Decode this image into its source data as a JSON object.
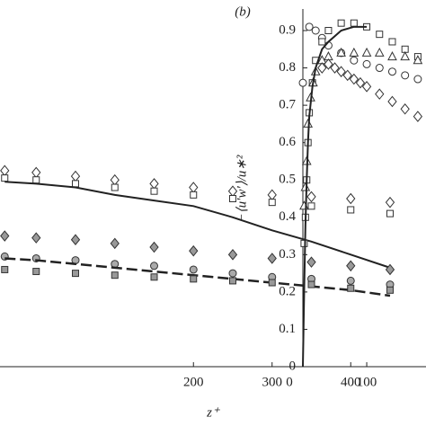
{
  "chart_data": [
    {
      "type": "scatter",
      "xlabel": "z⁺",
      "xlim": [
        -46,
        450
      ],
      "ylim": [
        0,
        0.9
      ],
      "xticks": [
        200,
        300,
        400
      ],
      "x": [
        -40,
        0,
        50,
        100,
        150,
        200,
        250,
        300,
        350,
        400,
        450
      ],
      "series": [
        {
          "marker": "diamond",
          "color": "#333333",
          "fill": "#ffffff",
          "values": [
            0.525,
            0.52,
            0.51,
            0.5,
            0.49,
            0.48,
            0.47,
            0.46,
            0.455,
            0.45,
            0.44
          ]
        },
        {
          "marker": "square",
          "color": "#333333",
          "fill": "#ffffff",
          "values": [
            0.505,
            0.5,
            0.49,
            0.48,
            0.47,
            0.46,
            0.45,
            0.44,
            0.43,
            0.42,
            0.41
          ]
        },
        {
          "marker": "line",
          "color": "#222222",
          "values": [
            0.495,
            0.49,
            0.48,
            0.46,
            0.445,
            0.43,
            0.4,
            0.365,
            0.335,
            0.3,
            0.265
          ]
        },
        {
          "marker": "diamond",
          "color": "#333333",
          "fill": "#999999",
          "values": [
            0.35,
            0.345,
            0.34,
            0.33,
            0.32,
            0.31,
            0.3,
            0.29,
            0.28,
            0.27,
            0.26
          ]
        },
        {
          "marker": "circle",
          "color": "#333333",
          "fill": "#aaaaaa",
          "values": [
            0.295,
            0.29,
            0.285,
            0.275,
            0.27,
            0.26,
            0.25,
            0.24,
            0.235,
            0.23,
            0.22
          ]
        },
        {
          "marker": "dashed",
          "color": "#222222",
          "values": [
            0.29,
            0.285,
            0.275,
            0.265,
            0.255,
            0.245,
            0.235,
            0.225,
            0.215,
            0.205,
            0.19
          ]
        },
        {
          "marker": "square",
          "color": "#333333",
          "fill": "#999999",
          "values": [
            0.26,
            0.255,
            0.25,
            0.245,
            0.24,
            0.235,
            0.23,
            0.225,
            0.22,
            0.21,
            0.205
          ]
        }
      ]
    },
    {
      "type": "scatter",
      "panel_label": "(b)",
      "ylabel": "−⟨u′w′⟩/u∗²",
      "xlim": [
        0,
        190
      ],
      "ylim": [
        0,
        0.9
      ],
      "xticks": [
        0,
        100
      ],
      "yticks": [
        0,
        0.1,
        0.2,
        0.3,
        0.4,
        0.5,
        0.6,
        0.7,
        0.8,
        0.9
      ],
      "series": [
        {
          "marker": "circle",
          "color": "#333333",
          "fill": "#ffffff",
          "x": [
            0,
            10,
            20,
            30,
            40,
            60,
            80,
            100,
            120,
            140,
            160,
            180
          ],
          "values": [
            0.76,
            0.91,
            0.9,
            0.88,
            0.86,
            0.84,
            0.82,
            0.81,
            0.8,
            0.79,
            0.78,
            0.77
          ]
        },
        {
          "marker": "square",
          "color": "#333333",
          "fill": "#ffffff",
          "x": [
            2,
            4,
            6,
            8,
            10,
            15,
            20,
            30,
            40,
            60,
            80,
            100,
            120,
            140,
            160,
            180
          ],
          "values": [
            0.33,
            0.4,
            0.5,
            0.6,
            0.68,
            0.76,
            0.82,
            0.87,
            0.9,
            0.92,
            0.92,
            0.91,
            0.89,
            0.87,
            0.85,
            0.83
          ]
        },
        {
          "marker": "triangle",
          "color": "#333333",
          "fill": "#ffffff",
          "x": [
            2,
            4,
            6,
            8,
            12,
            16,
            20,
            30,
            40,
            60,
            80,
            100,
            120,
            140,
            160,
            180
          ],
          "values": [
            0.43,
            0.48,
            0.55,
            0.65,
            0.72,
            0.76,
            0.79,
            0.82,
            0.83,
            0.84,
            0.84,
            0.84,
            0.84,
            0.83,
            0.83,
            0.82
          ]
        },
        {
          "marker": "diamond",
          "color": "#333333",
          "fill": "#ffffff",
          "x": [
            30,
            40,
            50,
            60,
            70,
            80,
            90,
            100,
            120,
            140,
            160,
            180
          ],
          "values": [
            0.8,
            0.81,
            0.8,
            0.79,
            0.78,
            0.77,
            0.76,
            0.75,
            0.73,
            0.71,
            0.69,
            0.67
          ]
        },
        {
          "marker": "line",
          "color": "#222222",
          "x": [
            0,
            2,
            4,
            6,
            8,
            10,
            15,
            20,
            30,
            40,
            60,
            80,
            100
          ],
          "values": [
            0,
            0.2,
            0.38,
            0.5,
            0.6,
            0.67,
            0.75,
            0.8,
            0.85,
            0.87,
            0.9,
            0.91,
            0.91
          ]
        }
      ]
    }
  ]
}
